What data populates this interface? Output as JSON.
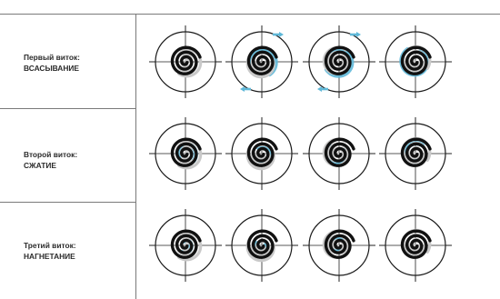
{
  "rows": [
    {
      "line1": "Первый виток:",
      "line2": "ВСАСЫВАНИЕ"
    },
    {
      "line1": "Второй виток:",
      "line2": "СЖАТИЕ"
    },
    {
      "line1": "Третий виток:",
      "line2": "НАГНЕТАНИЕ"
    }
  ],
  "colors": {
    "spiral": "#111111",
    "orbit": "#c9c9c9",
    "gas": "#5fb8d8",
    "circle": "#1a1a1a",
    "crosshair": "#222222",
    "grid": "#7a7a7a"
  },
  "cells": [
    {
      "phase_deg": 0,
      "gas": "none",
      "arrows": false
    },
    {
      "phase_deg": 90,
      "gas": "outer",
      "arrows": true
    },
    {
      "phase_deg": 180,
      "gas": "outer",
      "arrows": true
    },
    {
      "phase_deg": 270,
      "gas": "outer",
      "arrows": false
    },
    {
      "phase_deg": 0,
      "gas": "mid",
      "arrows": false
    },
    {
      "phase_deg": 90,
      "gas": "mid",
      "arrows": false
    },
    {
      "phase_deg": 180,
      "gas": "mid",
      "arrows": false
    },
    {
      "phase_deg": 270,
      "gas": "mid",
      "arrows": false
    },
    {
      "phase_deg": 0,
      "gas": "inner",
      "arrows": false
    },
    {
      "phase_deg": 90,
      "gas": "inner",
      "arrows": false
    },
    {
      "phase_deg": 180,
      "gas": "inner",
      "arrows": false
    },
    {
      "phase_deg": 270,
      "gas": "none",
      "arrows": false
    }
  ]
}
